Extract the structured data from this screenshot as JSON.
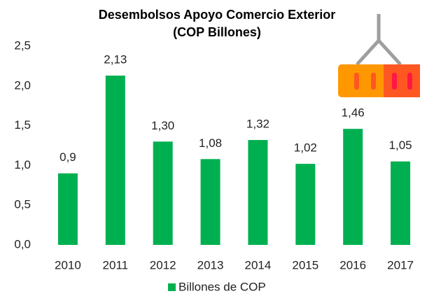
{
  "chart_data": {
    "type": "bar",
    "title": [
      "Desembolsos Apoyo Comercio Exterior",
      "(COP Billones)"
    ],
    "categories": [
      "2010",
      "2011",
      "2012",
      "2013",
      "2014",
      "2015",
      "2016",
      "2017"
    ],
    "series": [
      {
        "name": "Billones de COP",
        "color": "#00b050",
        "values": [
          0.9,
          2.13,
          1.3,
          1.08,
          1.32,
          1.02,
          1.46,
          1.05
        ],
        "value_labels": [
          "0,9",
          "2,13",
          "1,30",
          "1,08",
          "1,32",
          "1,02",
          "1,46",
          "1,05"
        ]
      }
    ],
    "ylim": [
      0,
      2.5
    ],
    "yticks": [
      {
        "value": 0,
        "label": "0,0"
      },
      {
        "value": 0.5,
        "label": "0,5"
      },
      {
        "value": 1,
        "label": "1,0"
      },
      {
        "value": 1.5,
        "label": "1,5"
      },
      {
        "value": 2,
        "label": "2,0"
      },
      {
        "value": 2.5,
        "label": "2,5"
      }
    ],
    "grid": false,
    "legend": "bottom"
  }
}
